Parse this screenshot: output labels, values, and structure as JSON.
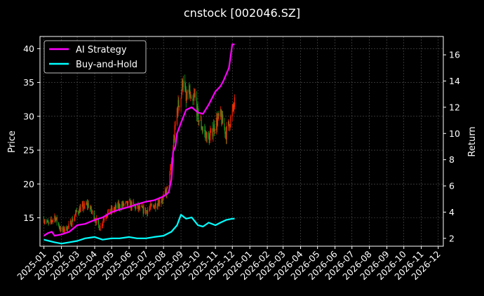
{
  "chart_data": {
    "type": "line",
    "title": "cnstock [002046.SZ]",
    "ylabel_left": "Price",
    "ylabel_right": "Return",
    "xlabel": "",
    "grid": true,
    "legend_position": "top-left",
    "colors": {
      "background": "#000000",
      "ai_strategy": "#ff00ff",
      "buy_and_hold": "#00ffff",
      "candle_up": "#ff2200",
      "candle_down": "#1f9e1f",
      "grid": "#555555",
      "text": "#ffffff"
    },
    "x_tick_labels": [
      "2025-01",
      "2025-02",
      "2025-03",
      "2025-04",
      "2025-05",
      "2025-06",
      "2025-07",
      "2025-08",
      "2025-09",
      "2025-10",
      "2025-11",
      "2025-12",
      "2026-01",
      "2026-02",
      "2026-03",
      "2026-04",
      "2026-05",
      "2026-06",
      "2026-07",
      "2026-08",
      "2026-09",
      "2026-10",
      "2026-11",
      "2026-12"
    ],
    "xlim": [
      "2024-12-25",
      "2026-12-10"
    ],
    "y_left_ticks": [
      15,
      20,
      25,
      30,
      35,
      40
    ],
    "y_left_lim": [
      10.8,
      41.8
    ],
    "y_right_ticks": [
      2,
      4,
      6,
      8,
      10,
      12,
      14,
      16
    ],
    "y_right_lim": [
      1.4,
      17.4
    ],
    "price_series": {
      "name": "Price",
      "x": [
        "2025-01-01",
        "2025-01-10",
        "2025-01-20",
        "2025-02-01",
        "2025-02-15",
        "2025-03-01",
        "2025-03-10",
        "2025-03-20",
        "2025-04-01",
        "2025-04-10",
        "2025-04-20",
        "2025-05-01",
        "2025-05-15",
        "2025-06-01",
        "2025-06-15",
        "2025-07-01",
        "2025-07-15",
        "2025-08-01",
        "2025-08-10",
        "2025-08-20",
        "2025-08-25",
        "2025-09-01",
        "2025-09-05",
        "2025-09-10",
        "2025-09-15",
        "2025-09-20",
        "2025-09-25",
        "2025-10-01",
        "2025-10-10",
        "2025-10-20",
        "2025-11-01",
        "2025-11-10",
        "2025-11-20",
        "2025-12-01",
        "2025-12-05"
      ],
      "values": [
        14.8,
        14.0,
        15.2,
        13.0,
        13.8,
        16.0,
        16.5,
        17.0,
        15.0,
        13.5,
        15.5,
        16.0,
        16.8,
        17.0,
        16.5,
        16.0,
        16.8,
        18.0,
        19.5,
        27.0,
        31.0,
        33.0,
        36.0,
        32.0,
        34.0,
        31.0,
        33.0,
        30.0,
        28.0,
        26.5,
        29.0,
        30.0,
        27.5,
        30.5,
        32.0
      ]
    },
    "series": [
      {
        "name": "AI Strategy",
        "x": [
          "2025-01-01",
          "2025-01-08",
          "2025-01-15",
          "2025-01-20",
          "2025-02-01",
          "2025-02-15",
          "2025-03-01",
          "2025-03-15",
          "2025-04-01",
          "2025-04-15",
          "2025-05-01",
          "2025-05-15",
          "2025-06-01",
          "2025-06-15",
          "2025-07-01",
          "2025-07-15",
          "2025-08-01",
          "2025-08-10",
          "2025-08-15",
          "2025-08-18",
          "2025-08-22",
          "2025-08-25",
          "2025-09-01",
          "2025-09-10",
          "2025-09-20",
          "2025-10-01",
          "2025-10-10",
          "2025-10-20",
          "2025-11-01",
          "2025-11-10",
          "2025-11-15",
          "2025-11-25",
          "2025-12-01",
          "2025-12-05"
        ],
        "values": [
          2.2,
          2.4,
          2.5,
          2.2,
          2.3,
          2.5,
          3.0,
          3.1,
          3.4,
          3.6,
          4.0,
          4.2,
          4.4,
          4.6,
          4.8,
          4.9,
          5.2,
          5.5,
          6.5,
          8.6,
          9.0,
          10.0,
          10.8,
          11.8,
          12.0,
          11.6,
          11.5,
          12.2,
          13.2,
          13.6,
          14.0,
          15.0,
          16.8,
          16.8
        ]
      },
      {
        "name": "Buy-and-Hold",
        "x": [
          "2025-01-01",
          "2025-01-10",
          "2025-01-20",
          "2025-02-01",
          "2025-02-15",
          "2025-03-01",
          "2025-03-15",
          "2025-04-01",
          "2025-04-15",
          "2025-05-01",
          "2025-05-15",
          "2025-06-01",
          "2025-06-15",
          "2025-07-01",
          "2025-07-15",
          "2025-08-01",
          "2025-08-15",
          "2025-08-25",
          "2025-09-01",
          "2025-09-10",
          "2025-09-20",
          "2025-10-01",
          "2025-10-10",
          "2025-10-20",
          "2025-11-01",
          "2025-11-10",
          "2025-11-20",
          "2025-12-01",
          "2025-12-05"
        ],
        "values": [
          1.9,
          1.8,
          1.7,
          1.6,
          1.7,
          1.8,
          2.0,
          2.1,
          1.9,
          2.0,
          2.0,
          2.1,
          2.0,
          2.0,
          2.1,
          2.2,
          2.5,
          3.0,
          3.8,
          3.5,
          3.6,
          3.0,
          2.9,
          3.2,
          3.0,
          3.2,
          3.4,
          3.5,
          3.5
        ]
      }
    ]
  }
}
